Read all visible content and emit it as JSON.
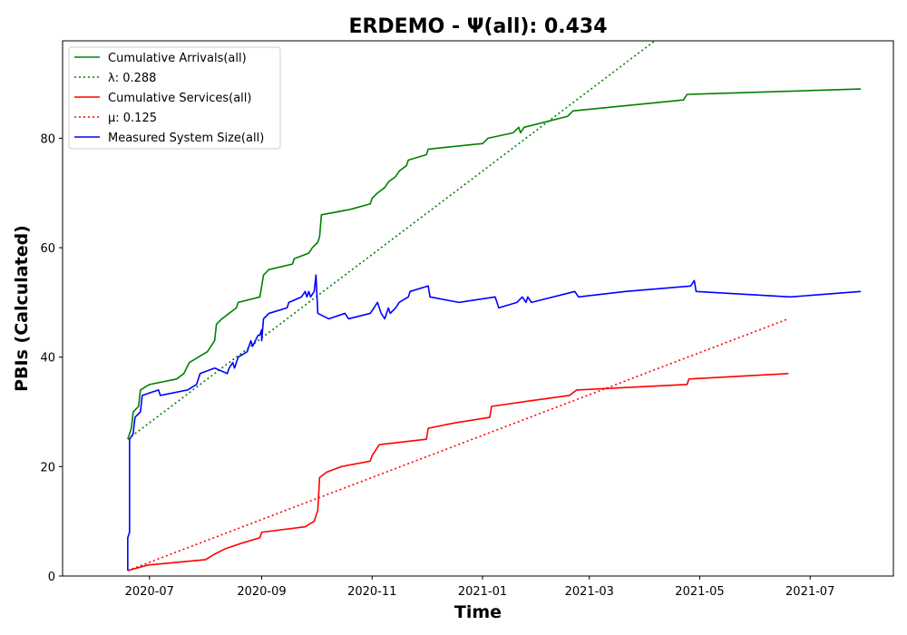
{
  "chart_data": {
    "type": "line",
    "title": "ERDEMO -  Ψ(all): 0.434",
    "xlabel": "Time",
    "ylabel": "PBIs (Calculated)",
    "xlim": [
      "2020-05-14",
      "2021-08-16"
    ],
    "ylim": [
      0,
      97.8
    ],
    "x_ticks": [
      "2020-07",
      "2020-09",
      "2020-11",
      "2021-01",
      "2021-03",
      "2021-05",
      "2021-07"
    ],
    "y_ticks": [
      0,
      20,
      40,
      60,
      80
    ],
    "grid": false,
    "legend_position": "top-left",
    "series": [
      {
        "name": "Cumulative Arrivals(all)",
        "style": "solid",
        "color": "#008000",
        "points": [
          [
            "2020-06-19",
            25
          ],
          [
            "2020-06-20",
            26
          ],
          [
            "2020-06-21",
            27
          ],
          [
            "2020-06-22",
            30
          ],
          [
            "2020-06-25",
            31
          ],
          [
            "2020-06-26",
            34
          ],
          [
            "2020-07-01",
            35
          ],
          [
            "2020-07-16",
            36
          ],
          [
            "2020-07-20",
            37
          ],
          [
            "2020-07-23",
            39
          ],
          [
            "2020-08-02",
            41
          ],
          [
            "2020-08-06",
            43
          ],
          [
            "2020-08-07",
            46
          ],
          [
            "2020-08-10",
            47
          ],
          [
            "2020-08-14",
            48
          ],
          [
            "2020-08-18",
            49
          ],
          [
            "2020-08-19",
            50
          ],
          [
            "2020-08-31",
            51
          ],
          [
            "2020-09-01",
            53
          ],
          [
            "2020-09-02",
            55
          ],
          [
            "2020-09-05",
            56
          ],
          [
            "2020-09-18",
            57
          ],
          [
            "2020-09-19",
            58
          ],
          [
            "2020-09-27",
            59
          ],
          [
            "2020-09-29",
            60
          ],
          [
            "2020-10-02",
            61
          ],
          [
            "2020-10-03",
            62
          ],
          [
            "2020-10-04",
            66
          ],
          [
            "2020-10-20",
            67
          ],
          [
            "2020-10-31",
            68
          ],
          [
            "2020-11-01",
            69
          ],
          [
            "2020-11-04",
            70
          ],
          [
            "2020-11-08",
            71
          ],
          [
            "2020-11-10",
            72
          ],
          [
            "2020-11-14",
            73
          ],
          [
            "2020-11-16",
            74
          ],
          [
            "2020-11-20",
            75
          ],
          [
            "2020-11-21",
            76
          ],
          [
            "2020-12-01",
            77
          ],
          [
            "2020-12-02",
            78
          ],
          [
            "2020-12-31",
            79
          ],
          [
            "2021-01-01",
            79
          ],
          [
            "2021-01-04",
            80
          ],
          [
            "2021-01-18",
            81
          ],
          [
            "2021-01-21",
            82
          ],
          [
            "2021-01-22",
            81
          ],
          [
            "2021-01-24",
            82
          ],
          [
            "2021-02-17",
            84
          ],
          [
            "2021-02-20",
            85
          ],
          [
            "2021-04-22",
            87
          ],
          [
            "2021-04-24",
            88
          ],
          [
            "2021-07-29",
            89
          ]
        ]
      },
      {
        "name": "λ: 0.288",
        "style": "dotted",
        "color": "#008000",
        "points": [
          [
            "2020-06-19",
            25
          ],
          [
            "2021-04-07",
            98
          ]
        ]
      },
      {
        "name": "Cumulative Services(all)",
        "style": "solid",
        "color": "#ff0000",
        "points": [
          [
            "2020-06-19",
            1
          ],
          [
            "2020-06-30",
            2
          ],
          [
            "2020-08-01",
            3
          ],
          [
            "2020-08-06",
            4
          ],
          [
            "2020-08-12",
            5
          ],
          [
            "2020-08-21",
            6
          ],
          [
            "2020-08-31",
            7
          ],
          [
            "2020-09-01",
            8
          ],
          [
            "2020-09-25",
            9
          ],
          [
            "2020-09-30",
            10
          ],
          [
            "2020-10-01",
            11
          ],
          [
            "2020-10-02",
            12
          ],
          [
            "2020-10-03",
            18
          ],
          [
            "2020-10-07",
            19
          ],
          [
            "2020-10-15",
            20
          ],
          [
            "2020-10-31",
            21
          ],
          [
            "2020-11-01",
            22
          ],
          [
            "2020-11-05",
            24
          ],
          [
            "2020-12-01",
            25
          ],
          [
            "2020-12-02",
            27
          ],
          [
            "2020-12-17",
            28
          ],
          [
            "2021-01-05",
            29
          ],
          [
            "2021-01-06",
            31
          ],
          [
            "2021-01-27",
            32
          ],
          [
            "2021-02-18",
            33
          ],
          [
            "2021-02-22",
            34
          ],
          [
            "2021-04-24",
            35
          ],
          [
            "2021-04-25",
            36
          ],
          [
            "2021-06-19",
            37
          ]
        ]
      },
      {
        "name": "μ: 0.125",
        "style": "dotted",
        "color": "#ff0000",
        "points": [
          [
            "2020-06-19",
            1
          ],
          [
            "2021-06-19",
            47
          ]
        ]
      },
      {
        "name": "Measured System Size(all)",
        "style": "solid",
        "color": "#0000ff",
        "points": [
          [
            "2020-06-19",
            1
          ],
          [
            "2020-06-19",
            7
          ],
          [
            "2020-06-20",
            8
          ],
          [
            "2020-06-20",
            25
          ],
          [
            "2020-06-22",
            26
          ],
          [
            "2020-06-23",
            29
          ],
          [
            "2020-06-26",
            30
          ],
          [
            "2020-06-27",
            33
          ],
          [
            "2020-07-06",
            34
          ],
          [
            "2020-07-07",
            33
          ],
          [
            "2020-07-22",
            34
          ],
          [
            "2020-07-27",
            35
          ],
          [
            "2020-07-29",
            37
          ],
          [
            "2020-08-06",
            38
          ],
          [
            "2020-08-13",
            37
          ],
          [
            "2020-08-14",
            38
          ],
          [
            "2020-08-16",
            39
          ],
          [
            "2020-08-17",
            38
          ],
          [
            "2020-08-19",
            40
          ],
          [
            "2020-08-24",
            41
          ],
          [
            "2020-08-25",
            42
          ],
          [
            "2020-08-26",
            43
          ],
          [
            "2020-08-27",
            42
          ],
          [
            "2020-08-30",
            44
          ],
          [
            "2020-08-31",
            44
          ],
          [
            "2020-09-01",
            45
          ],
          [
            "2020-09-01",
            43
          ],
          [
            "2020-09-02",
            47
          ],
          [
            "2020-09-05",
            48
          ],
          [
            "2020-09-15",
            49
          ],
          [
            "2020-09-16",
            50
          ],
          [
            "2020-09-23",
            51
          ],
          [
            "2020-09-25",
            52
          ],
          [
            "2020-09-26",
            51
          ],
          [
            "2020-09-27",
            52
          ],
          [
            "2020-09-28",
            51
          ],
          [
            "2020-09-30",
            52
          ],
          [
            "2020-10-01",
            55
          ],
          [
            "2020-10-02",
            48
          ],
          [
            "2020-10-08",
            47
          ],
          [
            "2020-10-17",
            48
          ],
          [
            "2020-10-19",
            47
          ],
          [
            "2020-10-31",
            48
          ],
          [
            "2020-11-02",
            49
          ],
          [
            "2020-11-04",
            50
          ],
          [
            "2020-11-06",
            48
          ],
          [
            "2020-11-08",
            47
          ],
          [
            "2020-11-10",
            49
          ],
          [
            "2020-11-11",
            48
          ],
          [
            "2020-11-14",
            49
          ],
          [
            "2020-11-16",
            50
          ],
          [
            "2020-11-21",
            51
          ],
          [
            "2020-11-22",
            52
          ],
          [
            "2020-12-02",
            53
          ],
          [
            "2020-12-03",
            51
          ],
          [
            "2020-12-19",
            50
          ],
          [
            "2021-01-08",
            51
          ],
          [
            "2021-01-10",
            49
          ],
          [
            "2021-01-20",
            50
          ],
          [
            "2021-01-23",
            51
          ],
          [
            "2021-01-25",
            50
          ],
          [
            "2021-01-26",
            51
          ],
          [
            "2021-01-28",
            50
          ],
          [
            "2021-02-21",
            52
          ],
          [
            "2021-02-23",
            51
          ],
          [
            "2021-03-21",
            52
          ],
          [
            "2021-04-26",
            53
          ],
          [
            "2021-04-28",
            54
          ],
          [
            "2021-04-29",
            52
          ],
          [
            "2021-06-20",
            51
          ],
          [
            "2021-07-29",
            52
          ]
        ]
      }
    ]
  }
}
